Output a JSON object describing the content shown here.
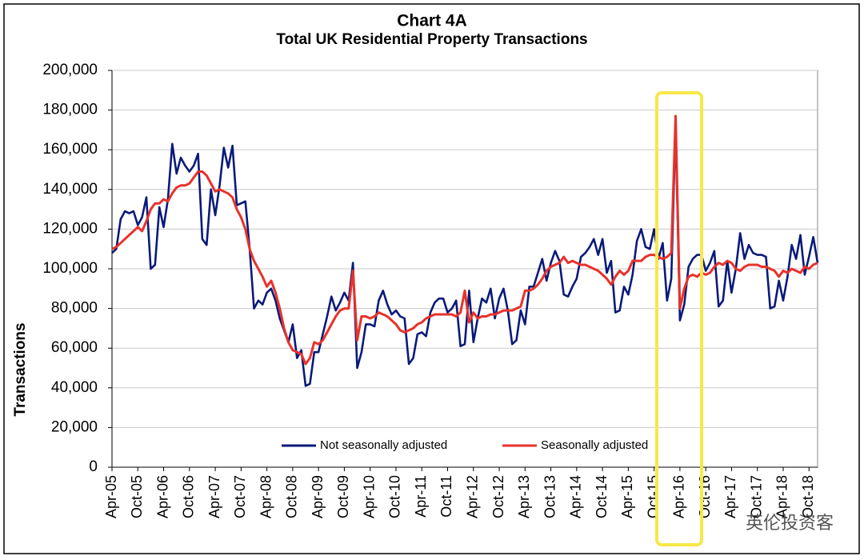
{
  "chart_data": {
    "type": "line",
    "title": "Chart 4A",
    "subtitle": "Total UK Residential Property Transactions",
    "y_label": "Transactions",
    "watermark": "英伦投资客",
    "categories": [
      "Apr-05",
      null,
      null,
      null,
      null,
      null,
      "Oct-05",
      null,
      null,
      null,
      null,
      null,
      "Apr-06",
      null,
      null,
      null,
      null,
      null,
      "Oct-06",
      null,
      null,
      null,
      null,
      null,
      "Apr-07",
      null,
      null,
      null,
      null,
      null,
      "Oct-07",
      null,
      null,
      null,
      null,
      null,
      "Apr-08",
      null,
      null,
      null,
      null,
      null,
      "Oct-08",
      null,
      null,
      null,
      null,
      null,
      "Apr-09",
      null,
      null,
      null,
      null,
      null,
      "Oct-09",
      null,
      null,
      null,
      null,
      null,
      "Apr-10",
      null,
      null,
      null,
      null,
      null,
      "Oct-10",
      null,
      null,
      null,
      null,
      null,
      "Apr-11",
      null,
      null,
      null,
      null,
      null,
      "Oct-11",
      null,
      null,
      null,
      null,
      null,
      "Apr-12",
      null,
      null,
      null,
      null,
      null,
      "Oct-12",
      null,
      null,
      null,
      null,
      null,
      "Apr-13",
      null,
      null,
      null,
      null,
      null,
      "Oct-13",
      null,
      null,
      null,
      null,
      null,
      "Apr-14",
      null,
      null,
      null,
      null,
      null,
      "Oct-14",
      null,
      null,
      null,
      null,
      null,
      "Apr-15",
      null,
      null,
      null,
      null,
      null,
      "Oct-15",
      null,
      null,
      null,
      null,
      null,
      "Apr-16",
      null,
      null,
      null,
      null,
      null,
      "Oct-16",
      null,
      null,
      null,
      null,
      null,
      "Apr-17",
      null,
      null,
      null,
      null,
      null,
      "Oct-17",
      null,
      null,
      null,
      null,
      null,
      "Apr-18",
      null,
      null,
      null,
      null,
      null,
      "Oct-18",
      null,
      null
    ],
    "series": [
      {
        "name": "Not seasonally adjusted",
        "color": "#0a1a7a",
        "values": [
          108000,
          110000,
          125000,
          129000,
          128000,
          129000,
          122000,
          126000,
          136000,
          100000,
          102000,
          131000,
          121000,
          135000,
          163000,
          148000,
          156000,
          152000,
          149000,
          152000,
          158000,
          115000,
          112000,
          140000,
          127000,
          142000,
          161000,
          151000,
          162000,
          132000,
          133000,
          134000,
          110000,
          80000,
          84000,
          82000,
          88000,
          90000,
          84000,
          75000,
          69000,
          63000,
          72000,
          55000,
          59000,
          41000,
          42000,
          58000,
          58000,
          67000,
          76000,
          86000,
          79000,
          83000,
          88000,
          84000,
          103000,
          50000,
          58000,
          72000,
          72000,
          71000,
          84000,
          89000,
          82000,
          77000,
          79000,
          76000,
          75000,
          52000,
          55000,
          67000,
          68000,
          66000,
          78000,
          83000,
          85000,
          85000,
          78000,
          80000,
          84000,
          61000,
          62000,
          89000,
          63000,
          75000,
          85000,
          83000,
          90000,
          75000,
          85000,
          90000,
          79000,
          62000,
          64000,
          79000,
          72000,
          91000,
          91000,
          98000,
          105000,
          94000,
          103000,
          109000,
          104000,
          87000,
          86000,
          91000,
          95000,
          106000,
          108000,
          111000,
          115000,
          107000,
          115000,
          98000,
          104000,
          78000,
          79000,
          91000,
          87000,
          97000,
          114000,
          120000,
          111000,
          110000,
          120000,
          105000,
          113000,
          84000,
          95000,
          172000,
          74000,
          82000,
          101000,
          105000,
          107000,
          107000,
          99000,
          103000,
          109000,
          81000,
          84000,
          104000,
          88000,
          100000,
          118000,
          105000,
          112000,
          108000,
          107000,
          107000,
          106000,
          80000,
          81000,
          94000,
          84000,
          96000,
          112000,
          105000,
          117000,
          97000,
          106000,
          116000,
          103000
        ]
      },
      {
        "name": "Seasonally adjusted",
        "color": "#e8322a",
        "values": [
          110000,
          111000,
          113000,
          115000,
          117000,
          119000,
          121000,
          119000,
          124000,
          130000,
          133000,
          133000,
          135000,
          134000,
          138000,
          141000,
          142000,
          142000,
          143000,
          146000,
          149000,
          149000,
          147000,
          143000,
          139000,
          140000,
          139000,
          138000,
          136000,
          130000,
          126000,
          120000,
          110000,
          104000,
          100000,
          96000,
          91000,
          94000,
          88000,
          80000,
          70000,
          63000,
          59000,
          58000,
          57000,
          52000,
          55000,
          63000,
          62000,
          64000,
          68000,
          72000,
          76000,
          79000,
          80000,
          80000,
          99000,
          64000,
          76000,
          76000,
          75000,
          76000,
          78000,
          77000,
          76000,
          74000,
          72000,
          69000,
          68000,
          69000,
          70000,
          72000,
          73000,
          75000,
          76000,
          77000,
          77000,
          77000,
          77000,
          77000,
          76000,
          78000,
          89000,
          73000,
          78000,
          75000,
          76000,
          76000,
          77000,
          77000,
          78000,
          79000,
          79000,
          79000,
          80000,
          81000,
          89000,
          89000,
          90000,
          92000,
          95000,
          99000,
          101000,
          102000,
          103000,
          106000,
          103000,
          104000,
          103000,
          102000,
          102000,
          101000,
          100000,
          99000,
          97000,
          95000,
          92000,
          96000,
          99000,
          97000,
          99000,
          104000,
          104000,
          104000,
          106000,
          107000,
          107000,
          106000,
          105000,
          106000,
          108000,
          177000,
          80000,
          90000,
          96000,
          97000,
          96000,
          98000,
          97000,
          98000,
          101000,
          103000,
          102000,
          104000,
          103000,
          100000,
          99000,
          101000,
          102000,
          102000,
          102000,
          101000,
          101000,
          100000,
          99000,
          96000,
          99000,
          98000,
          100000,
          99000,
          98000,
          101000,
          100000,
          102000,
          103000
        ]
      }
    ],
    "ylim": [
      0,
      200000
    ],
    "yticks": [
      0,
      {
        "value": 20000,
        "label": "20,000"
      },
      {
        "value": 40000,
        "label": "40,000"
      },
      {
        "value": 60000,
        "label": "60,000"
      },
      {
        "value": 80000,
        "label": "80,000"
      },
      {
        "value": 100000,
        "label": "100,000"
      },
      {
        "value": 120000,
        "label": "120,000"
      },
      {
        "value": 140000,
        "label": "140,000"
      },
      {
        "value": 160000,
        "label": "160,000"
      },
      {
        "value": 180000,
        "label": "180,000"
      },
      {
        "value": 200000,
        "label": "200,000"
      }
    ],
    "grid": true
  }
}
